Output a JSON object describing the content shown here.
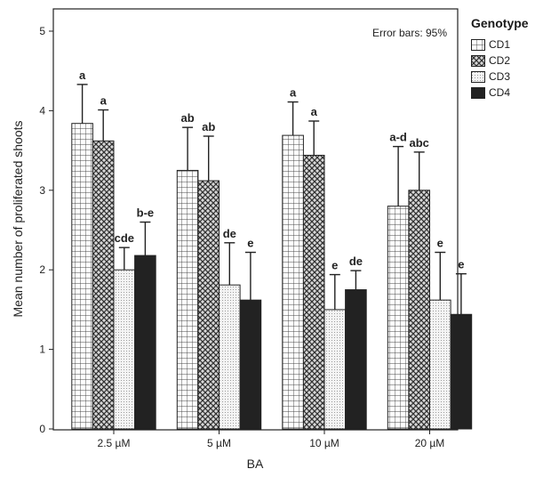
{
  "chart_data": {
    "type": "bar",
    "title": "",
    "xlabel": "BA",
    "ylabel": "Mean number of proliferated shoots",
    "ylim": [
      0,
      5
    ],
    "yticks": [
      "0",
      "1",
      "2",
      "3",
      "4",
      "5"
    ],
    "grid": false,
    "error_note": "Error bars: 95%",
    "legend_title": "Genotype",
    "legend_position": "right",
    "categories": [
      "2.5 µM",
      "5 µM",
      "10 µM",
      "20 µM"
    ],
    "series": [
      {
        "name": "CD1",
        "pattern": "grid",
        "color": "#ffffff",
        "values": [
          3.84,
          3.25,
          3.69,
          2.8
        ],
        "error_upper": [
          4.33,
          3.79,
          4.11,
          3.55
        ],
        "letters": [
          "a",
          "ab",
          "a",
          "a-d"
        ]
      },
      {
        "name": "CD2",
        "pattern": "checker",
        "color": "#6b6b6b",
        "values": [
          3.62,
          3.12,
          3.44,
          3.0
        ],
        "error_upper": [
          4.01,
          3.68,
          3.87,
          3.48
        ],
        "letters": [
          "a",
          "ab",
          "a",
          "abc"
        ]
      },
      {
        "name": "CD3",
        "pattern": "dots",
        "color": "#e8e8e8",
        "values": [
          2.0,
          1.81,
          1.5,
          1.62
        ],
        "error_upper": [
          2.28,
          2.34,
          1.94,
          2.22
        ],
        "letters": [
          "cde",
          "de",
          "e",
          "e"
        ]
      },
      {
        "name": "CD4",
        "pattern": "solid",
        "color": "#222222",
        "values": [
          2.18,
          1.62,
          1.75,
          1.44
        ],
        "error_upper": [
          2.6,
          2.22,
          1.99,
          1.95
        ],
        "letters": [
          "b-e",
          "e",
          "de",
          "e"
        ]
      }
    ]
  }
}
